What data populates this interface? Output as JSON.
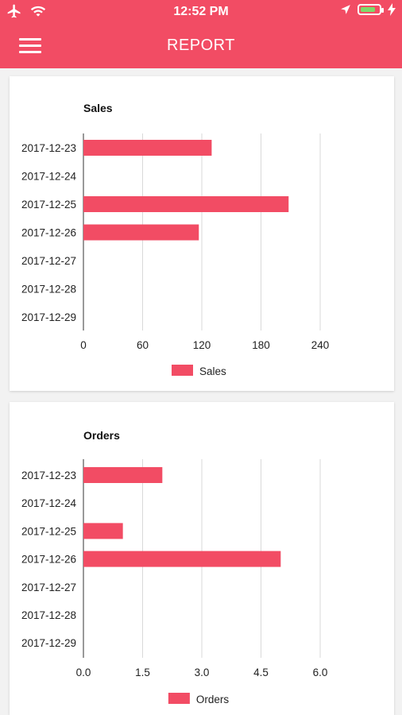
{
  "status_bar": {
    "time": "12:52 PM",
    "icons": [
      "airplane-icon",
      "wifi-icon",
      "location-arrow-icon",
      "battery-icon",
      "charging-bolt-icon"
    ]
  },
  "app_bar": {
    "title": "REPORT",
    "menu_icon": "hamburger-menu-icon"
  },
  "colors": {
    "accent": "#f24c64",
    "bar": "#f24c64",
    "grid": "#d9d9d9",
    "battery": "#7dd96a"
  },
  "chart_data": [
    {
      "type": "bar",
      "orientation": "horizontal",
      "title": "Sales",
      "categories": [
        "2017-12-23",
        "2017-12-24",
        "2017-12-25",
        "2017-12-26",
        "2017-12-27",
        "2017-12-28",
        "2017-12-29"
      ],
      "series": [
        {
          "name": "Sales",
          "values": [
            130,
            0,
            208,
            117,
            0,
            0,
            0
          ]
        }
      ],
      "xlim": [
        0,
        300
      ],
      "xticks": [
        0,
        60,
        120,
        180,
        240
      ],
      "xtick_labels": [
        "0",
        "60",
        "120",
        "180",
        "240"
      ],
      "grid": true,
      "legend": "bottom-center"
    },
    {
      "type": "bar",
      "orientation": "horizontal",
      "title": "Orders",
      "categories": [
        "2017-12-23",
        "2017-12-24",
        "2017-12-25",
        "2017-12-26",
        "2017-12-27",
        "2017-12-28",
        "2017-12-29"
      ],
      "series": [
        {
          "name": "Orders",
          "values": [
            2,
            0,
            1,
            5,
            0,
            0,
            0
          ]
        }
      ],
      "xlim": [
        0,
        7.5
      ],
      "xticks": [
        0,
        1.5,
        3.0,
        4.5,
        6.0
      ],
      "xtick_labels": [
        "0.0",
        "1.5",
        "3.0",
        "4.5",
        "6.0"
      ],
      "grid": true,
      "legend": "bottom-center"
    }
  ]
}
